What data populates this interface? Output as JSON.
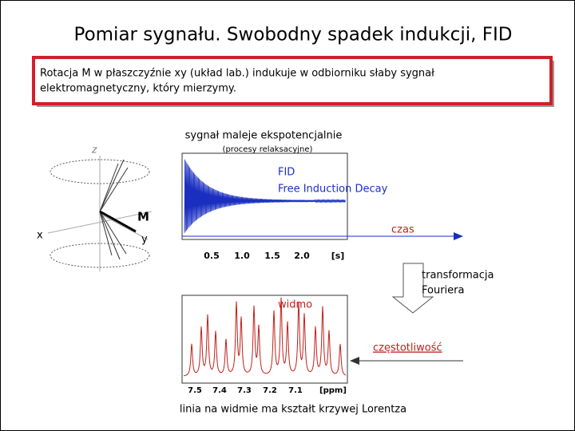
{
  "header": {
    "title": "Pomiar sygnału. Swobodny spadek indukcji, FID"
  },
  "intro": {
    "lines": [
      "Rotacja M w płaszczyźnie xy (układ lab.) indukuje w odbiorniku słaby sygnał",
      "elektromagnetyczny, który mierzymy."
    ]
  },
  "vector_diagram": {
    "z": "z",
    "x": "x",
    "y": "y",
    "m": "M"
  },
  "fid": {
    "caption": "sygnał maleje ekspotencjalnie",
    "subcaption": "(procesy relaksacyjne)",
    "label": "FID",
    "label_full": "Free Induction Decay",
    "axis_label": "czas",
    "ticks": [
      "0.5",
      "1.0",
      "1.5",
      "2.0",
      "[s]"
    ]
  },
  "transform": {
    "lines": [
      "transformacja",
      "Fouriera"
    ]
  },
  "spectrum": {
    "label": "widmo",
    "axis_label": "częstotliwość",
    "ticks": [
      "7.5",
      "7.4",
      "7.3",
      "7.2",
      "7.1",
      "[ppm]"
    ],
    "note": "linia na widmie ma kształt krzywej Lorentza"
  }
}
